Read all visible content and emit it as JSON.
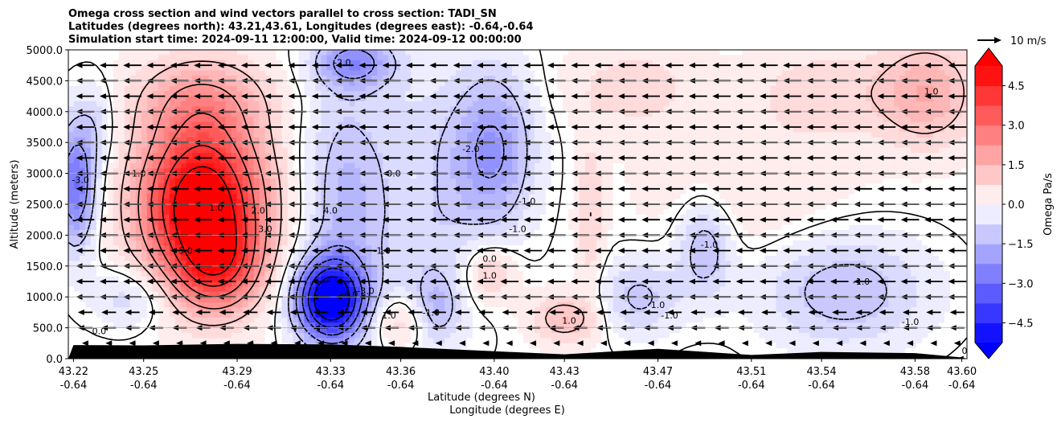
{
  "chart_data": {
    "type": "heatmap",
    "title_lines": [
      "Omega cross section and wind vectors parallel to cross section: TADI_SN",
      "Latitudes (degrees north): 43.21,43.61, Longitudes (degrees east): -0.64,-0.64",
      "Simulation start time: 2024-09-11 12:00:00, Valid time: 2024-09-12 00:00:00"
    ],
    "ylabel": "Altitude (meters)",
    "xlabel_lat": "Latitude (degrees N)",
    "xlabel_lon": "Longitude (degrees E)",
    "ylim": [
      0,
      5000
    ],
    "y_ticks": [
      "0.0",
      "500.0",
      "1000.0",
      "1500.0",
      "2000.0",
      "2500.0",
      "3000.0",
      "3500.0",
      "4000.0",
      "4500.0",
      "5000.0"
    ],
    "x_ticks_lat": [
      "43.22",
      "43.25",
      "43.29",
      "43.33",
      "43.36",
      "43.40",
      "43.43",
      "43.47",
      "43.51",
      "43.54",
      "43.58",
      "43.60"
    ],
    "x_ticks_lon": [
      "-0.64",
      "-0.64",
      "-0.64",
      "-0.64",
      "-0.64",
      "-0.64",
      "-0.64",
      "-0.64",
      "-0.64",
      "-0.64",
      "-0.64",
      "-0.64"
    ],
    "grid_y": true,
    "colorbar": {
      "label": "Omega Pa/s",
      "ticks": [
        "4.5",
        "3.0",
        "1.5",
        "0.0",
        "−1.5",
        "−3.0",
        "−4.5"
      ],
      "range": [
        -5.25,
        5.25
      ],
      "extend": "both",
      "colormap": "bwr"
    },
    "quiver_key": {
      "label": "10 m/s"
    },
    "contour_labels": [
      "0.0",
      "-2.0",
      "-3.0",
      "-1.0",
      "1.0",
      "5.0",
      "2.0",
      "4.0",
      "3.0",
      "-4.0"
    ],
    "omega_features": [
      {
        "lat": 43.275,
        "alt": 2500,
        "omega": 6.0,
        "width_lat": 0.018,
        "width_alt": 900
      },
      {
        "lat": 43.282,
        "alt": 1500,
        "omega": 2.5,
        "width_lat": 0.012,
        "width_alt": 500
      },
      {
        "lat": 43.275,
        "alt": 4200,
        "omega": 1.5,
        "width_lat": 0.02,
        "width_alt": 500
      },
      {
        "lat": 43.221,
        "alt": 2800,
        "omega": -3.0,
        "width_lat": 0.006,
        "width_alt": 700
      },
      {
        "lat": 43.33,
        "alt": 950,
        "omega": -6.0,
        "width_lat": 0.01,
        "width_alt": 450
      },
      {
        "lat": 43.335,
        "alt": 2600,
        "omega": -1.3,
        "width_lat": 0.012,
        "width_alt": 1400
      },
      {
        "lat": 43.34,
        "alt": 4800,
        "omega": -2.2,
        "width_lat": 0.012,
        "width_alt": 300
      },
      {
        "lat": 43.4,
        "alt": 3400,
        "omega": -2.0,
        "width_lat": 0.012,
        "width_alt": 900
      },
      {
        "lat": 43.37,
        "alt": 2600,
        "omega": -1.0,
        "width_lat": 0.02,
        "width_alt": 1500
      },
      {
        "lat": 43.365,
        "alt": 2900,
        "omega": 0.4,
        "width_lat": 0.006,
        "width_alt": 400
      },
      {
        "lat": 43.36,
        "alt": 600,
        "omega": 1.1,
        "width_lat": 0.01,
        "width_alt": 300
      },
      {
        "lat": 43.375,
        "alt": 800,
        "omega": -1.3,
        "width_lat": 0.007,
        "width_alt": 400
      },
      {
        "lat": 43.398,
        "alt": 1400,
        "omega": 1.2,
        "width_lat": 0.008,
        "width_alt": 350
      },
      {
        "lat": 43.43,
        "alt": 650,
        "omega": 1.3,
        "width_lat": 0.01,
        "width_alt": 280
      },
      {
        "lat": 43.441,
        "alt": 2300,
        "omega": 0.9,
        "width_lat": 0.004,
        "width_alt": 900
      },
      {
        "lat": 43.462,
        "alt": 1000,
        "omega": -1.2,
        "width_lat": 0.012,
        "width_alt": 450
      },
      {
        "lat": 43.49,
        "alt": 1800,
        "omega": -1.5,
        "width_lat": 0.008,
        "width_alt": 550
      },
      {
        "lat": 43.46,
        "alt": 4400,
        "omega": 0.7,
        "width_lat": 0.02,
        "width_alt": 500
      },
      {
        "lat": 43.54,
        "alt": 4300,
        "omega": 0.8,
        "width_lat": 0.02,
        "width_alt": 500
      },
      {
        "lat": 43.585,
        "alt": 4300,
        "omega": 1.6,
        "width_lat": 0.015,
        "width_alt": 600
      },
      {
        "lat": 43.55,
        "alt": 1100,
        "omega": -1.4,
        "width_lat": 0.025,
        "width_alt": 650
      },
      {
        "lat": 43.51,
        "alt": 2700,
        "omega": 0.5,
        "width_lat": 0.03,
        "width_alt": 700
      },
      {
        "lat": 43.245,
        "alt": 1000,
        "omega": -1.0,
        "width_lat": 0.012,
        "width_alt": 350
      },
      {
        "lat": 43.23,
        "alt": 3800,
        "omega": -0.8,
        "width_lat": 0.006,
        "width_alt": 500
      }
    ],
    "wind_note": "Wind vectors point southward (toward lower latitude) throughout, weakening near the terrain.",
    "wind_speed_ms": 9.5,
    "terrain_alt_m": [
      {
        "lat": 43.22,
        "alt": 220
      },
      {
        "lat": 43.25,
        "alt": 215
      },
      {
        "lat": 43.29,
        "alt": 240
      },
      {
        "lat": 43.33,
        "alt": 230
      },
      {
        "lat": 43.36,
        "alt": 190
      },
      {
        "lat": 43.4,
        "alt": 120
      },
      {
        "lat": 43.43,
        "alt": 70
      },
      {
        "lat": 43.47,
        "alt": 160
      },
      {
        "lat": 43.51,
        "alt": 60
      },
      {
        "lat": 43.54,
        "alt": 110
      },
      {
        "lat": 43.58,
        "alt": 90
      },
      {
        "lat": 43.6,
        "alt": 20
      }
    ]
  }
}
